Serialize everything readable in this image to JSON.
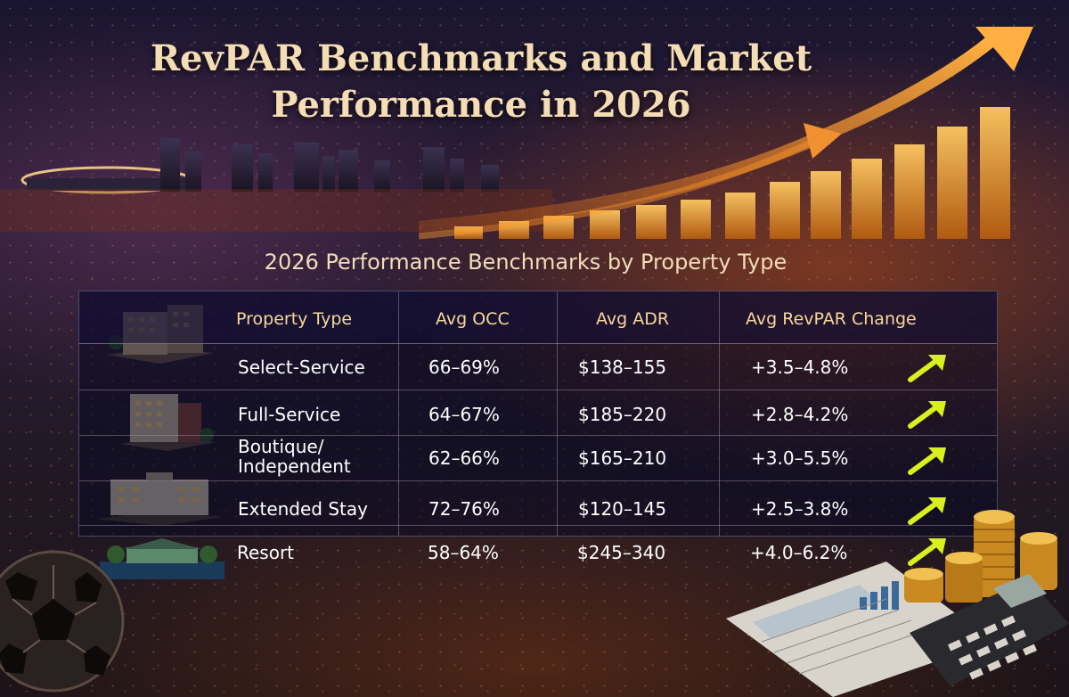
{
  "title_lines": [
    "RevPAR Benchmarks and Market",
    "Performance in 2026"
  ],
  "subtitle": "2026 Performance Benchmarks by Property Type",
  "table": {
    "headers": [
      "Property Type",
      "Avg OCC",
      "Avg ADR",
      "Avg RevPAR Change"
    ],
    "rows": [
      {
        "type": "Select-Service",
        "occ": "66–69%",
        "adr": "$138–155",
        "revpar": "+3.5–4.8%"
      },
      {
        "type": "Full-Service",
        "occ": "64–67%",
        "adr": "$185–220",
        "revpar": "+2.8–4.2%"
      },
      {
        "type_lines": [
          "Boutique/",
          "Independent"
        ],
        "occ": "62–66%",
        "adr": "$165–210",
        "revpar": "+3.0–5.5%"
      },
      {
        "type": "Extended Stay",
        "occ": "72–76%",
        "adr": "$120–145",
        "revpar": "+2.5–3.8%"
      },
      {
        "type": "Resort",
        "occ": "58–64%",
        "adr": "$245–340",
        "revpar": "+4.0–6.2%"
      }
    ]
  },
  "icons": {
    "trend": "up-right-arrow-icon",
    "decorations": [
      "city-skyline",
      "growth-bar-chart",
      "hotel-building",
      "soccer-ball",
      "coin-stacks",
      "calculator",
      "financial-report"
    ]
  },
  "colors": {
    "title": "#f4dcb4",
    "header_text": "#f6d89a",
    "cell_text": "#ffffff",
    "trend_arrow": "#d8f020",
    "growth_bars": "#e8a030"
  }
}
